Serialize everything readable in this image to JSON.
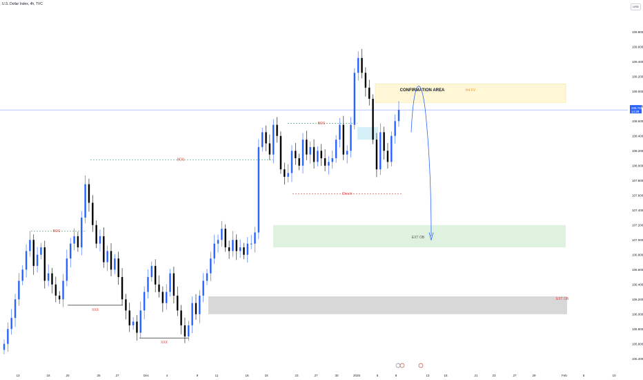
{
  "header": {
    "symbol_line": "U.S. Dollar Index, 4h, TVC",
    "currency": "USD"
  },
  "colors": {
    "up": "#2962ff",
    "down": "#000000",
    "bos": "#e53935",
    "confirm_fill": "#fff7d6",
    "ext_fill": "#dff2df",
    "gray_zone": "#d8d8d8",
    "lightblue": "#d6f0f8",
    "arrow": "#2962ff",
    "price_line": "#6f86ff"
  },
  "chart_data": {
    "type": "candlestick",
    "ylim": [
      105.3,
      110.1
    ],
    "y_ticks": [
      "109.800",
      "109.600",
      "109.400",
      "109.200",
      "109.000",
      "108.800",
      "108.600",
      "108.400",
      "108.200",
      "108.000",
      "107.800",
      "107.600",
      "107.400",
      "107.200",
      "107.000",
      "106.800",
      "106.600",
      "106.400",
      "106.200",
      "106.000",
      "105.800",
      "105.600",
      "105.400"
    ],
    "x_ticks": [
      "13",
      "18",
      "20",
      "25",
      "27",
      "Dec",
      "4",
      "9",
      "11",
      "16",
      "18",
      "23",
      "27",
      "30",
      "2025",
      "6",
      "8",
      "13",
      "15",
      "21",
      "23",
      "27",
      "29",
      "Feb",
      "5",
      "10"
    ],
    "last_price": {
      "value": "108.750",
      "countdown": "14:29"
    },
    "close_path": [
      105.6,
      105.8,
      105.95,
      106.2,
      106.45,
      106.6,
      106.85,
      107.0,
      106.65,
      106.8,
      106.9,
      106.45,
      106.55,
      106.4,
      106.25,
      106.2,
      106.45,
      106.75,
      106.95,
      107.05,
      106.9,
      107.3,
      107.75,
      107.5,
      107.2,
      106.95,
      107.05,
      106.7,
      106.85,
      106.6,
      106.75,
      106.5,
      106.2,
      106.05,
      105.85,
      105.9,
      105.75,
      106.05,
      106.3,
      106.5,
      106.65,
      106.4,
      106.3,
      106.15,
      106.3,
      106.55,
      106.25,
      106.05,
      105.85,
      105.7,
      105.85,
      106.15,
      106.0,
      106.25,
      106.45,
      106.55,
      106.75,
      106.95,
      107.0,
      107.15,
      106.9,
      106.85,
      107.0,
      106.85,
      106.9,
      106.8,
      106.95,
      106.95,
      107.1,
      108.25,
      108.45,
      108.3,
      108.15,
      108.55,
      108.4,
      107.95,
      107.85,
      107.9,
      108.2,
      108.1,
      108.0,
      108.35,
      108.15,
      108.25,
      108.05,
      108.2,
      108.1,
      108.0,
      108.05,
      108.1,
      108.35,
      108.55,
      108.15,
      108.2,
      108.55,
      109.25,
      109.45,
      109.25,
      109.05,
      108.9,
      108.35,
      107.95,
      108.45,
      108.2,
      108.05,
      108.4,
      108.6,
      108.75
    ],
    "annotations": [
      {
        "text": "BOS",
        "y": 107.12
      },
      {
        "text": "BOS",
        "y": 108.08
      },
      {
        "text": "BOS",
        "y": 108.57
      },
      {
        "text": "XXX",
        "y": 106.12
      },
      {
        "text": "XXX",
        "y": 105.68
      },
      {
        "text": "Choch",
        "y": 107.62
      },
      {
        "text": "CONFIRMATION AREA",
        "y": 109.02
      },
      {
        "text": "H4 FV",
        "y": 109.02
      },
      {
        "text": "EXT OB",
        "y": 107.04
      },
      {
        "text": "EXT OB",
        "y": 106.21
      }
    ],
    "zones": [
      {
        "name": "confirmation-area",
        "from": 108.85,
        "to": 109.1
      },
      {
        "name": "ext-ob-upper",
        "from": 106.9,
        "to": 107.2
      },
      {
        "name": "ext-ob-lower",
        "from": 106.0,
        "to": 106.24
      },
      {
        "name": "fvg-lightblue",
        "from": 108.35,
        "to": 108.52
      }
    ],
    "grid": false
  }
}
